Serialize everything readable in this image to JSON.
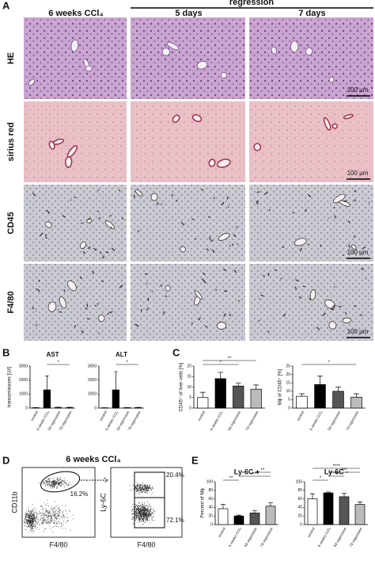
{
  "figure": {
    "panel_a": {
      "letter": "A",
      "columns": [
        "6 weeks CCl₄",
        "5 days",
        "7 days"
      ],
      "regression": "regression",
      "rows": [
        "HE",
        "sirius red",
        "CD45",
        "F4/80"
      ],
      "scale_bar": "100 µm"
    },
    "panel_b": {
      "letter": "B"
    },
    "panel_c": {
      "letter": "C"
    },
    "panel_d": {
      "letter": "D",
      "title": "6 weeks CCl₄",
      "left_y": "CD11b",
      "left_x": "F4/80",
      "gate_left": "16.2%",
      "right_y": "Ly-6C",
      "right_x": "F4/80",
      "gate_upper": "20.4%",
      "gate_lower": "72.1%"
    },
    "panel_e": {
      "letter": "E"
    }
  },
  "chart_data": [
    {
      "type": "bar",
      "title": "AST",
      "ylabel": "transaminases [U/l]",
      "categories": [
        "control",
        "6 weeks CCl₄",
        "5d regression",
        "7d regression"
      ],
      "values": [
        30,
        1300,
        50,
        40
      ],
      "errors": [
        5,
        1000,
        15,
        15
      ],
      "colors": [
        "#ffffff",
        "#000000",
        "#555555",
        "#bbbbbb"
      ],
      "ylim": [
        0,
        3000
      ],
      "yticks": [
        0,
        1000,
        2000,
        3000
      ],
      "annotations": [
        "*"
      ]
    },
    {
      "type": "bar",
      "title": "ALT",
      "categories": [
        "control",
        "6 weeks CCl₄",
        "5d regression",
        "7d regression"
      ],
      "values": [
        20,
        1300,
        30,
        40
      ],
      "errors": [
        5,
        1300,
        10,
        10
      ],
      "colors": [
        "#ffffff",
        "#000000",
        "#555555",
        "#bbbbbb"
      ],
      "ylim": [
        0,
        3000
      ],
      "yticks": [
        0,
        1000,
        2000,
        3000
      ],
      "annotations": [
        "*"
      ]
    },
    {
      "type": "bar",
      "ylabel": "CD45⁺ of liver cells [%]",
      "categories": [
        "control",
        "6 weeks CCl₄",
        "5d regression",
        "7d regression"
      ],
      "values": [
        5,
        14,
        10.5,
        9
      ],
      "errors": [
        2.5,
        3,
        1.5,
        2
      ],
      "colors": [
        "#ffffff",
        "#000000",
        "#555555",
        "#bbbbbb"
      ],
      "ylim": [
        0,
        20
      ],
      "yticks": [
        0,
        5,
        10,
        15,
        20
      ],
      "annotations": [
        "*",
        "**"
      ]
    },
    {
      "type": "bar",
      "ylabel": "Mϕ of CD45⁺ [%]",
      "categories": [
        "control",
        "6 weeks CCl₄",
        "5d regression",
        "7d regression"
      ],
      "values": [
        7,
        14,
        10,
        6.5
      ],
      "errors": [
        1.5,
        5,
        2.5,
        2
      ],
      "colors": [
        "#ffffff",
        "#000000",
        "#555555",
        "#bbbbbb"
      ],
      "ylim": [
        0,
        25
      ],
      "yticks": [
        0,
        5,
        10,
        15,
        20,
        25
      ],
      "annotations": [
        "*"
      ]
    },
    {
      "type": "bar",
      "title": "Ly-6C +",
      "ylabel": "Percent of Mϕ",
      "categories": [
        "control",
        "6 weeks CCl₄",
        "5d regression",
        "7d regression"
      ],
      "values": [
        37,
        20,
        27,
        43
      ],
      "errors": [
        10,
        2,
        6,
        8
      ],
      "colors": [
        "#ffffff",
        "#000000",
        "#555555",
        "#bbbbbb"
      ],
      "ylim": [
        0,
        100
      ],
      "yticks": [
        0,
        20,
        40,
        60,
        80,
        100
      ],
      "annotations": [
        "**",
        "****",
        "**"
      ]
    },
    {
      "type": "bar",
      "title": "Ly-6C -",
      "categories": [
        "control",
        "6 weeks CCl₄",
        "5d regression",
        "7d regression"
      ],
      "values": [
        60,
        74,
        65,
        47
      ],
      "errors": [
        12,
        2,
        8,
        6
      ],
      "colors": [
        "#ffffff",
        "#000000",
        "#555555",
        "#bbbbbb"
      ],
      "ylim": [
        0,
        100
      ],
      "yticks": [
        0,
        20,
        40,
        60,
        80,
        100
      ],
      "annotations": [
        "*",
        "*",
        "***",
        "****"
      ]
    }
  ]
}
